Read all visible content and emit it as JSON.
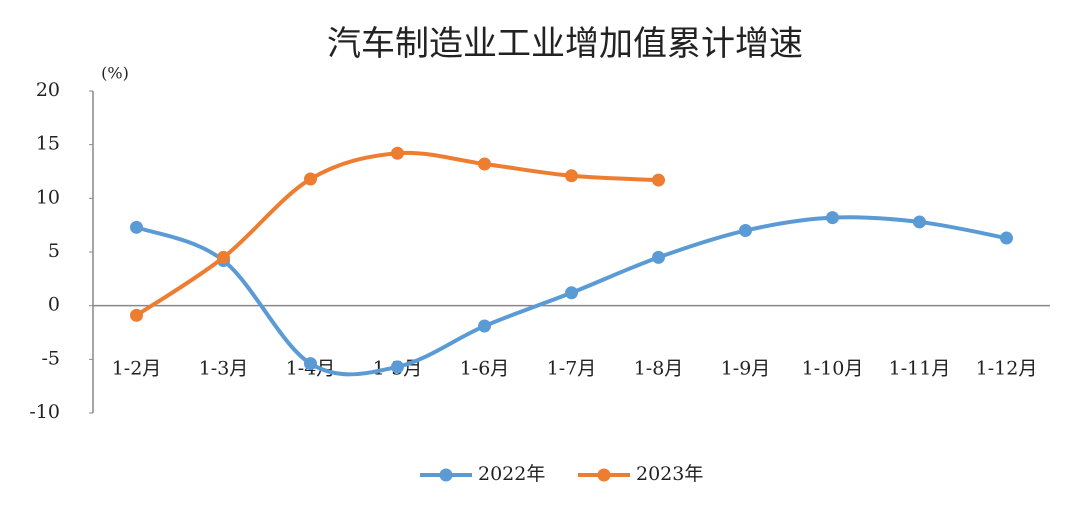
{
  "chart_data": {
    "type": "line",
    "title": "汽车制造业工业增加值累计增速",
    "y_unit": "(%)",
    "categories": [
      "1-2月",
      "1-3月",
      "1-4月",
      "1-5月",
      "1-6月",
      "1-7月",
      "1-8月",
      "1-9月",
      "1-10月",
      "1-11月",
      "1-12月"
    ],
    "series": [
      {
        "name": "2022年",
        "color": "#5b9bd5",
        "values": [
          7.3,
          4.2,
          -5.4,
          -5.7,
          -1.9,
          1.2,
          4.5,
          7.0,
          8.2,
          7.8,
          6.3
        ]
      },
      {
        "name": "2023年",
        "color": "#ed7d31",
        "values": [
          -0.9,
          4.5,
          11.8,
          14.2,
          13.2,
          12.1,
          11.7,
          null,
          null,
          null,
          null
        ]
      }
    ],
    "ylim": [
      -10,
      20
    ],
    "yticks": [
      -10,
      -5,
      0,
      5,
      10,
      15,
      20
    ],
    "negative_tick_color": "#ff0000",
    "legend": "bottom",
    "grid": false
  }
}
